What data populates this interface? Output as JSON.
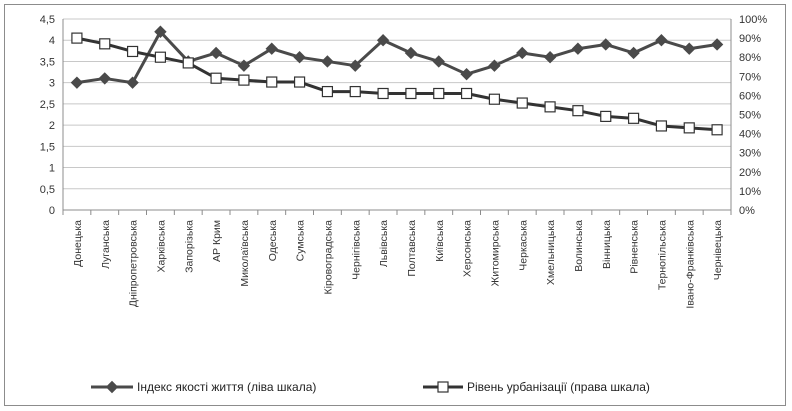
{
  "chart_data": {
    "type": "line",
    "categories": [
      "Донецька",
      "Луганська",
      "Дніпропетровська",
      "Харківська",
      "Запорізька",
      "АР Крим",
      "Миколаївська",
      "Одеська",
      "Сумська",
      "Кіровоградська",
      "Чернігівська",
      "Львівська",
      "Полтавська",
      "Київська",
      "Херсонська",
      "Житомирська",
      "Черкаська",
      "Хмельницька",
      "Волинська",
      "Вінницька",
      "Рівненська",
      "Тернопільська",
      "Івано-Франківська",
      "Чернівецька"
    ],
    "series": [
      {
        "name": "Індекс якості життя (ліва шкала)",
        "axis": "left",
        "marker": "diamond",
        "color": "#4a4a4a",
        "values": [
          3.0,
          3.1,
          3.0,
          4.2,
          3.5,
          3.7,
          3.4,
          3.8,
          3.6,
          3.5,
          3.4,
          4.0,
          3.7,
          3.5,
          3.2,
          3.4,
          3.7,
          3.6,
          3.8,
          3.9,
          3.7,
          4.0,
          3.8,
          3.9
        ]
      },
      {
        "name": "Рівень урбанізації (права шкала)",
        "axis": "right",
        "marker": "square-open",
        "color": "#333333",
        "values": [
          90,
          87,
          83,
          80,
          77,
          69,
          68,
          67,
          67,
          62,
          62,
          61,
          61,
          61,
          61,
          58,
          56,
          54,
          52,
          49,
          48,
          44,
          43,
          42
        ]
      }
    ],
    "y_left": {
      "min": 0,
      "max": 4.5,
      "ticks": [
        "0",
        "0,5",
        "1",
        "1,5",
        "2",
        "2,5",
        "3",
        "3,5",
        "4",
        "4,5"
      ]
    },
    "y_right": {
      "min": 0,
      "max": 100,
      "ticks": [
        "0%",
        "10%",
        "20%",
        "30%",
        "40%",
        "50%",
        "60%",
        "70%",
        "80%",
        "90%",
        "100%"
      ]
    },
    "grid": true,
    "legend_position": "bottom"
  }
}
